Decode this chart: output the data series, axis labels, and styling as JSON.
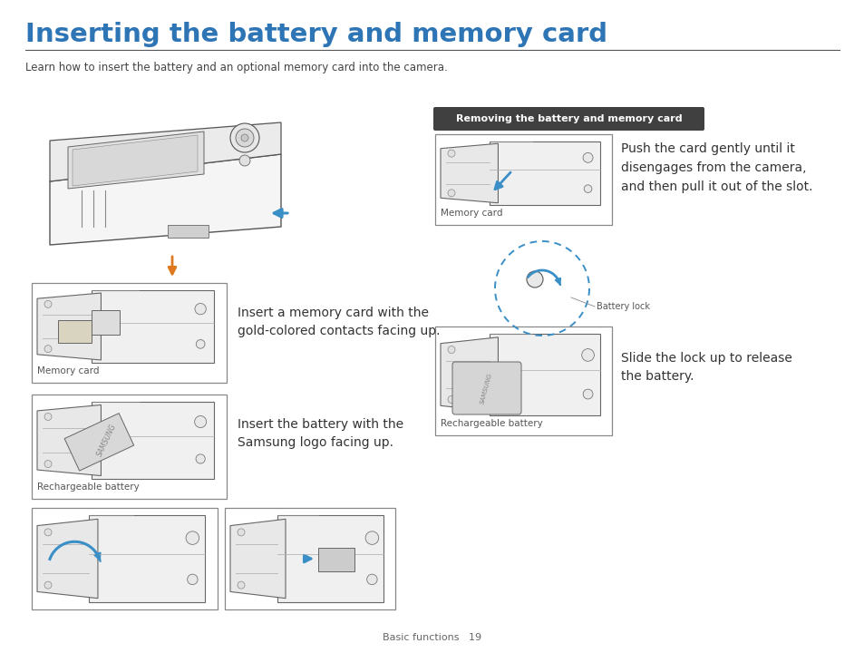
{
  "title": "Inserting the battery and memory card",
  "subtitle": "Learn how to insert the battery and an optional memory card into the camera.",
  "title_color": "#2E75B6",
  "title_fontsize": 21,
  "subtitle_fontsize": 8.5,
  "body_fontsize": 10,
  "label_fontsize": 7.5,
  "bg_color": "#ffffff",
  "blue_arrow": "#3A8FC7",
  "orange_arrow": "#E07820",
  "removing_label_bg": "#404040",
  "removing_label_text": "#ffffff",
  "removing_label": "Removing the battery and memory card",
  "text_insert_memory": "Insert a memory card with the\ngold-colored contacts facing up.",
  "text_insert_battery": "Insert the battery with the\nSamsung logo facing up.",
  "text_push_card": "Push the card gently until it\ndisengages from the camera,\nand then pull it out of the slot.",
  "text_slide_lock": "Slide the lock up to release\nthe battery.",
  "label_memory_card1": "Memory card",
  "label_rechargeable1": "Rechargeable battery",
  "label_memory_card2": "Memory card",
  "label_rechargeable2": "Rechargeable battery",
  "label_battery_lock": "Battery lock",
  "footer_text": "Basic functions   19",
  "footer_fontsize": 8
}
